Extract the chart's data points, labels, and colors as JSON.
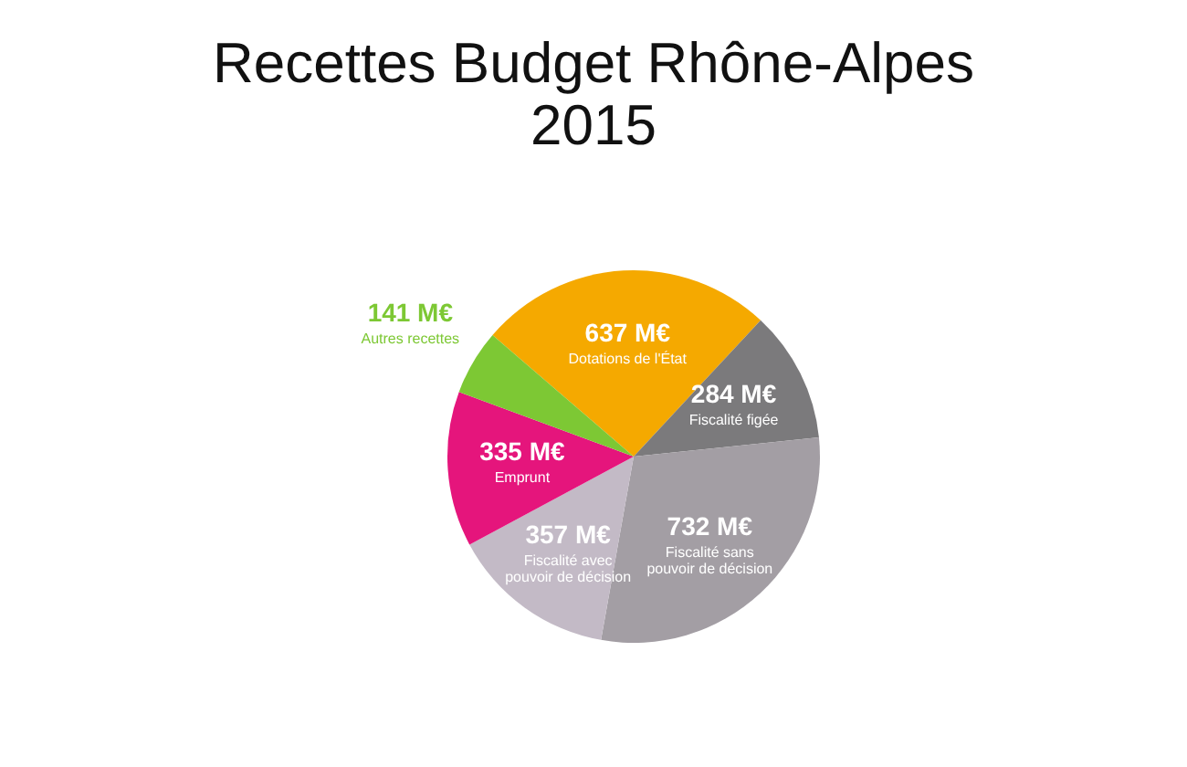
{
  "chart_data": {
    "type": "pie",
    "title": "Recettes Budget Rhône-Alpes 2015",
    "categories": [
      "Dotations de l'État",
      "Fiscalité figée",
      "Fiscalité sans pouvoir de décision",
      "Fiscalité avec pouvoir de décision",
      "Emprunt",
      "Autres recettes"
    ],
    "values": [
      637,
      284,
      732,
      357,
      335,
      141
    ],
    "value_labels": [
      "637 M€",
      "284 M€",
      "732 M€",
      "357 M€",
      "335 M€",
      "141 M€"
    ],
    "colors": [
      "#f5a900",
      "#7b7a7c",
      "#a39ea4",
      "#c3bac6",
      "#e5157c",
      "#7dc834"
    ]
  }
}
